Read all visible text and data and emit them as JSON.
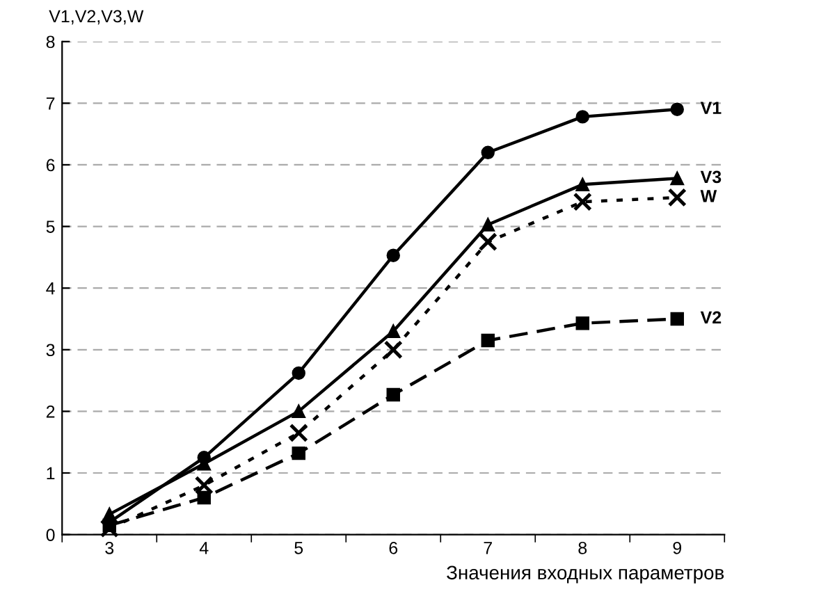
{
  "chart_data": {
    "type": "line",
    "ylabel": "V1,V2,V3,W",
    "xlabel": "Значения входных параметров",
    "categories": [
      "3",
      "4",
      "5",
      "6",
      "7",
      "8",
      "9"
    ],
    "series": [
      {
        "name": "V1",
        "color": "#000000",
        "marker": "circle",
        "line_style": "solid",
        "values": [
          0.2,
          1.25,
          2.62,
          4.53,
          6.2,
          6.78,
          6.9
        ]
      },
      {
        "name": "V3",
        "color": "#000000",
        "marker": "triangle",
        "line_style": "solid",
        "values": [
          0.33,
          1.15,
          2.0,
          3.3,
          5.03,
          5.68,
          5.78
        ]
      },
      {
        "name": "V2",
        "color": "#000000",
        "marker": "square",
        "line_style": "dashed",
        "values": [
          0.15,
          0.6,
          1.32,
          2.27,
          3.15,
          3.43,
          3.5
        ]
      },
      {
        "name": "W",
        "color": "#000000",
        "marker": "cross",
        "line_style": "dotted",
        "values": [
          0.1,
          0.8,
          1.65,
          3.0,
          4.75,
          5.4,
          5.47
        ]
      }
    ],
    "ylim": [
      0,
      8
    ],
    "yticks": [
      0,
      1,
      2,
      3,
      4,
      5,
      6,
      7,
      8
    ],
    "grid": "y",
    "legend": false
  }
}
